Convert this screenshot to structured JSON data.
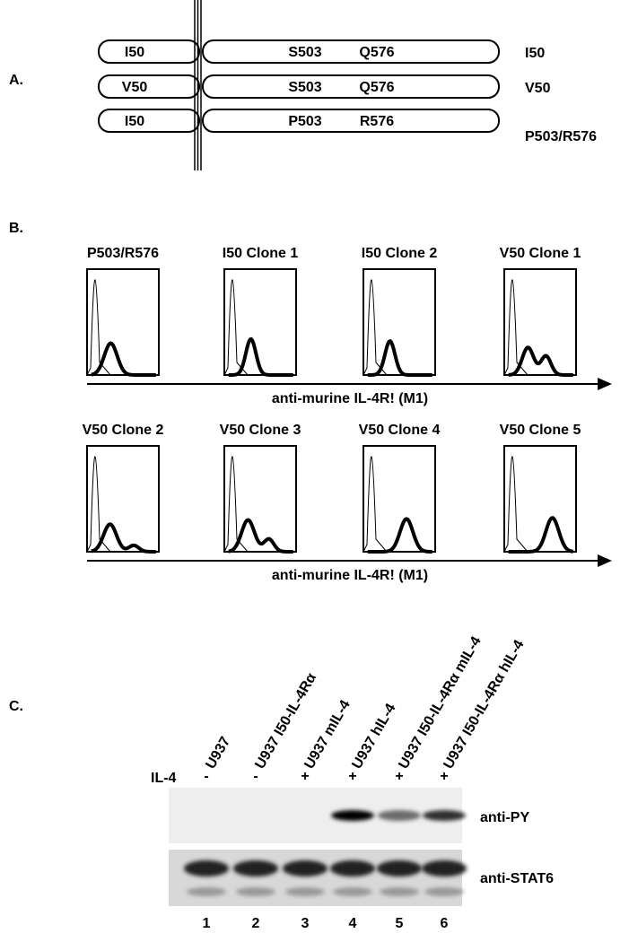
{
  "panels": {
    "A": {
      "label": "A.",
      "constructs": [
        {
          "left": "I50",
          "right": [
            "S503",
            "Q576"
          ],
          "name": "I50"
        },
        {
          "left": "V50",
          "right": [
            "S503",
            "Q576"
          ],
          "name": "V50"
        },
        {
          "left": "I50",
          "right": [
            "P503",
            "R576"
          ],
          "name": "P503/R576"
        }
      ]
    },
    "B": {
      "label": "B.",
      "rows": [
        {
          "titles": [
            "P503/R576",
            "I50 Clone 1",
            "I50 Clone 2",
            "V50 Clone 1"
          ],
          "axis_label": "anti-murine IL-4R!  (M1)"
        },
        {
          "titles": [
            "V50 Clone 2",
            "V50 Clone 3",
            "V50 Clone 4",
            "V50 Clone 5"
          ],
          "axis_label": "anti-murine IL-4R!  (M1)"
        }
      ]
    },
    "C": {
      "label": "C.",
      "treatment_label": "IL-4",
      "blots": [
        "anti-PY",
        "anti-STAT6"
      ],
      "lanes": [
        {
          "name": "U937",
          "il4": "-",
          "number": 1
        },
        {
          "name": "U937 I50-IL-4Rα",
          "il4": "-",
          "number": 2
        },
        {
          "name": "U937 mIL-4",
          "il4": "+",
          "number": 3
        },
        {
          "name": "U937 hIL-4",
          "il4": "+",
          "number": 4
        },
        {
          "name": "U937 I50-IL-4Rα mIL-4",
          "il4": "+",
          "number": 5
        },
        {
          "name": "U937 I50-IL-4Rα hIL-4",
          "il4": "+",
          "number": 6
        }
      ]
    }
  }
}
